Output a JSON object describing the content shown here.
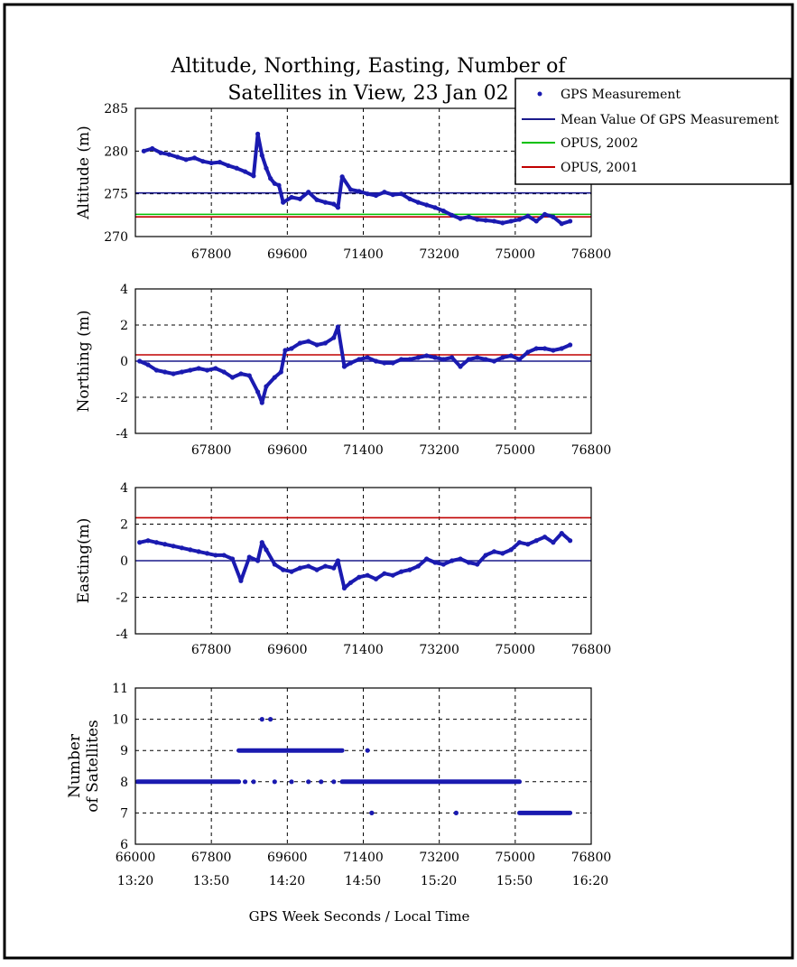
{
  "title_line1": "Altitude, Northing, Easting, Number of",
  "title_line2": "Satellites in View,  23 Jan 02",
  "legend": {
    "gps": "GPS Measurement",
    "mean": "Mean Value Of GPS Measurement",
    "opus2002": "OPUS, 2002",
    "opus2001": "OPUS, 2001"
  },
  "colors": {
    "gps": "#1a1ab0",
    "mean": "#1a1a8c",
    "opus2002": "#00c000",
    "opus2001": "#c00000",
    "grid": "#000000"
  },
  "x_ticks": [
    "67800",
    "69600",
    "71400",
    "73200",
    "75000",
    "76800"
  ],
  "bottom_first_tick": "66000",
  "time_ticks": [
    "13:20",
    "13:50",
    "14:20",
    "14:50",
    "15:20",
    "15:50",
    "16:20"
  ],
  "xlabel": "GPS Week Seconds / Local Time",
  "chart_data": [
    {
      "type": "scatter",
      "ylabel": "Altitude (m)",
      "xlim": [
        66000,
        76800
      ],
      "ylim": [
        270,
        285
      ],
      "yticks": [
        "285",
        "280",
        "275",
        "270"
      ],
      "grid": true,
      "reference_lines": [
        {
          "name": "Mean Value Of GPS Measurement",
          "y": 275.1
        },
        {
          "name": "OPUS, 2002",
          "y": 272.6
        },
        {
          "name": "OPUS, 2001",
          "y": 272.3
        }
      ],
      "series": [
        {
          "name": "GPS Measurement",
          "points": [
            [
              66200,
              280.0
            ],
            [
              66400,
              280.3
            ],
            [
              66600,
              279.8
            ],
            [
              66800,
              279.6
            ],
            [
              67000,
              279.3
            ],
            [
              67200,
              279.0
            ],
            [
              67400,
              279.2
            ],
            [
              67600,
              278.8
            ],
            [
              67800,
              278.6
            ],
            [
              68000,
              278.7
            ],
            [
              68200,
              278.3
            ],
            [
              68400,
              278.0
            ],
            [
              68600,
              277.6
            ],
            [
              68800,
              277.1
            ],
            [
              68900,
              282.0
            ],
            [
              69000,
              279.5
            ],
            [
              69100,
              278.0
            ],
            [
              69200,
              276.8
            ],
            [
              69300,
              276.2
            ],
            [
              69400,
              276.0
            ],
            [
              69500,
              274.0
            ],
            [
              69700,
              274.6
            ],
            [
              69900,
              274.4
            ],
            [
              70100,
              275.2
            ],
            [
              70300,
              274.3
            ],
            [
              70500,
              274.0
            ],
            [
              70700,
              273.8
            ],
            [
              70800,
              273.4
            ],
            [
              70900,
              277.0
            ],
            [
              71100,
              275.5
            ],
            [
              71300,
              275.3
            ],
            [
              71500,
              275.0
            ],
            [
              71700,
              274.8
            ],
            [
              71900,
              275.2
            ],
            [
              72100,
              274.9
            ],
            [
              72300,
              275.0
            ],
            [
              72500,
              274.4
            ],
            [
              72700,
              274.0
            ],
            [
              72900,
              273.7
            ],
            [
              73100,
              273.4
            ],
            [
              73300,
              273.0
            ],
            [
              73500,
              272.5
            ],
            [
              73700,
              272.1
            ],
            [
              73900,
              272.3
            ],
            [
              74100,
              272.0
            ],
            [
              74300,
              271.9
            ],
            [
              74500,
              271.8
            ],
            [
              74700,
              271.6
            ],
            [
              74900,
              271.8
            ],
            [
              75100,
              272.0
            ],
            [
              75300,
              272.4
            ],
            [
              75500,
              271.8
            ],
            [
              75700,
              272.6
            ],
            [
              75900,
              272.3
            ],
            [
              76100,
              271.5
            ],
            [
              76300,
              271.8
            ]
          ]
        }
      ]
    },
    {
      "type": "scatter",
      "ylabel": "Northing (m)",
      "xlim": [
        66000,
        76800
      ],
      "ylim": [
        -4,
        4
      ],
      "yticks": [
        "4",
        "2",
        "0",
        "-2",
        "-4"
      ],
      "grid": true,
      "reference_lines": [
        {
          "name": "Mean Value Of GPS Measurement",
          "y": 0.0
        },
        {
          "name": "OPUS, 2001",
          "y": 0.35
        }
      ],
      "series": [
        {
          "name": "GPS Measurement",
          "points": [
            [
              66100,
              0.0
            ],
            [
              66300,
              -0.2
            ],
            [
              66500,
              -0.5
            ],
            [
              66700,
              -0.6
            ],
            [
              66900,
              -0.7
            ],
            [
              67100,
              -0.6
            ],
            [
              67300,
              -0.5
            ],
            [
              67500,
              -0.4
            ],
            [
              67700,
              -0.5
            ],
            [
              67900,
              -0.4
            ],
            [
              68100,
              -0.6
            ],
            [
              68300,
              -0.9
            ],
            [
              68500,
              -0.7
            ],
            [
              68700,
              -0.8
            ],
            [
              68900,
              -1.7
            ],
            [
              69000,
              -2.3
            ],
            [
              69100,
              -1.4
            ],
            [
              69300,
              -0.9
            ],
            [
              69450,
              -0.6
            ],
            [
              69550,
              0.6
            ],
            [
              69700,
              0.7
            ],
            [
              69900,
              1.0
            ],
            [
              70100,
              1.1
            ],
            [
              70300,
              0.9
            ],
            [
              70500,
              1.0
            ],
            [
              70700,
              1.3
            ],
            [
              70800,
              1.9
            ],
            [
              70950,
              -0.3
            ],
            [
              71100,
              -0.1
            ],
            [
              71300,
              0.1
            ],
            [
              71500,
              0.2
            ],
            [
              71700,
              0.0
            ],
            [
              71900,
              -0.1
            ],
            [
              72100,
              -0.1
            ],
            [
              72300,
              0.1
            ],
            [
              72500,
              0.1
            ],
            [
              72700,
              0.2
            ],
            [
              72900,
              0.3
            ],
            [
              73100,
              0.2
            ],
            [
              73300,
              0.1
            ],
            [
              73500,
              0.2
            ],
            [
              73700,
              -0.3
            ],
            [
              73900,
              0.1
            ],
            [
              74100,
              0.2
            ],
            [
              74300,
              0.1
            ],
            [
              74500,
              0.0
            ],
            [
              74700,
              0.2
            ],
            [
              74900,
              0.3
            ],
            [
              75100,
              0.1
            ],
            [
              75300,
              0.5
            ],
            [
              75500,
              0.7
            ],
            [
              75700,
              0.7
            ],
            [
              75900,
              0.6
            ],
            [
              76100,
              0.7
            ],
            [
              76300,
              0.9
            ]
          ]
        }
      ]
    },
    {
      "type": "scatter",
      "ylabel": "Easting(m)",
      "xlim": [
        66000,
        76800
      ],
      "ylim": [
        -4,
        4
      ],
      "yticks": [
        "4",
        "2",
        "0",
        "-2",
        "-4"
      ],
      "grid": true,
      "reference_lines": [
        {
          "name": "Mean Value Of GPS Measurement",
          "y": 0.0
        },
        {
          "name": "OPUS, 2001",
          "y": 2.35
        }
      ],
      "series": [
        {
          "name": "GPS Measurement",
          "points": [
            [
              66100,
              1.0
            ],
            [
              66300,
              1.1
            ],
            [
              66500,
              1.0
            ],
            [
              66700,
              0.9
            ],
            [
              66900,
              0.8
            ],
            [
              67100,
              0.7
            ],
            [
              67300,
              0.6
            ],
            [
              67500,
              0.5
            ],
            [
              67700,
              0.4
            ],
            [
              67900,
              0.3
            ],
            [
              68100,
              0.3
            ],
            [
              68300,
              0.1
            ],
            [
              68500,
              -1.1
            ],
            [
              68700,
              0.2
            ],
            [
              68900,
              0.0
            ],
            [
              69000,
              1.0
            ],
            [
              69100,
              0.6
            ],
            [
              69300,
              -0.2
            ],
            [
              69500,
              -0.5
            ],
            [
              69700,
              -0.6
            ],
            [
              69900,
              -0.4
            ],
            [
              70100,
              -0.3
            ],
            [
              70300,
              -0.5
            ],
            [
              70500,
              -0.3
            ],
            [
              70700,
              -0.4
            ],
            [
              70800,
              0.0
            ],
            [
              70950,
              -1.5
            ],
            [
              71100,
              -1.2
            ],
            [
              71300,
              -0.9
            ],
            [
              71500,
              -0.8
            ],
            [
              71700,
              -1.0
            ],
            [
              71900,
              -0.7
            ],
            [
              72100,
              -0.8
            ],
            [
              72300,
              -0.6
            ],
            [
              72500,
              -0.5
            ],
            [
              72700,
              -0.3
            ],
            [
              72900,
              0.1
            ],
            [
              73100,
              -0.1
            ],
            [
              73300,
              -0.2
            ],
            [
              73500,
              0.0
            ],
            [
              73700,
              0.1
            ],
            [
              73900,
              -0.1
            ],
            [
              74100,
              -0.2
            ],
            [
              74300,
              0.3
            ],
            [
              74500,
              0.5
            ],
            [
              74700,
              0.4
            ],
            [
              74900,
              0.6
            ],
            [
              75100,
              1.0
            ],
            [
              75300,
              0.9
            ],
            [
              75500,
              1.1
            ],
            [
              75700,
              1.3
            ],
            [
              75900,
              1.0
            ],
            [
              76100,
              1.5
            ],
            [
              76300,
              1.1
            ]
          ]
        }
      ]
    },
    {
      "type": "scatter",
      "ylabel_line1": "Number",
      "ylabel_line2": "of Satellites",
      "xlim": [
        66000,
        76800
      ],
      "ylim": [
        6,
        11
      ],
      "yticks": [
        "11",
        "10",
        "9",
        "8",
        "7",
        "6"
      ],
      "grid": true,
      "series": [
        {
          "name": "GPS Measurement",
          "segments": [
            {
              "x0": 66050,
              "x1": 68450,
              "y": 8
            },
            {
              "x0": 68450,
              "x1": 70900,
              "y": 9
            },
            {
              "x0": 70900,
              "x1": 75100,
              "y": 8
            },
            {
              "x0": 75100,
              "x1": 76300,
              "y": 7
            }
          ],
          "points": [
            [
              69000,
              10
            ],
            [
              69200,
              10
            ],
            [
              71500,
              9
            ],
            [
              71600,
              7
            ],
            [
              73600,
              7
            ],
            [
              68600,
              8
            ],
            [
              68800,
              8
            ],
            [
              69300,
              8
            ],
            [
              69700,
              8
            ],
            [
              70100,
              8
            ],
            [
              70400,
              8
            ],
            [
              70700,
              8
            ]
          ]
        }
      ]
    }
  ]
}
